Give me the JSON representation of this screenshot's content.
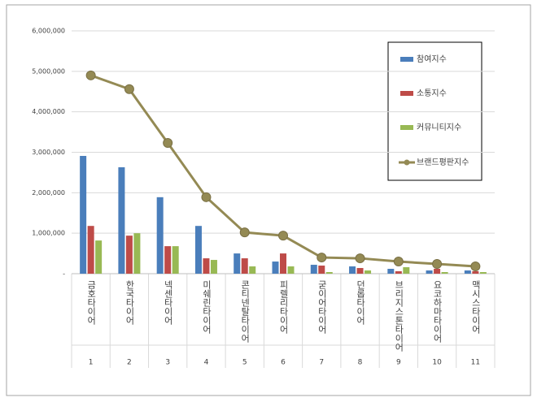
{
  "chart_data": {
    "type": "bar",
    "categories": [
      "금호타이어",
      "한국타이어",
      "넥센타이어",
      "미쉐린타이어",
      "콘티넨탈타이어",
      "피렐리타이어",
      "굳이어타이어",
      "던롭타이어",
      "브리지스톤타이어",
      "요코하마타이어",
      "맥시스타이어"
    ],
    "ranks": [
      1,
      2,
      3,
      4,
      5,
      6,
      7,
      8,
      9,
      10,
      11
    ],
    "series": [
      {
        "name": "참여지수",
        "color": "#4a7ebb",
        "values": [
          2910000,
          2630000,
          1890000,
          1180000,
          500000,
          300000,
          220000,
          180000,
          120000,
          80000,
          80000
        ]
      },
      {
        "name": "소통지수",
        "color": "#be4b48",
        "values": [
          1180000,
          940000,
          680000,
          380000,
          380000,
          500000,
          200000,
          140000,
          60000,
          120000,
          60000
        ]
      },
      {
        "name": "커뮤니티지수",
        "color": "#98b954",
        "values": [
          820000,
          1000000,
          680000,
          340000,
          180000,
          180000,
          40000,
          80000,
          160000,
          40000,
          40000
        ]
      },
      {
        "name": "브랜드평판지수",
        "color": "#948a54",
        "type": "line",
        "values": [
          4900000,
          4560000,
          3230000,
          1890000,
          1020000,
          940000,
          400000,
          380000,
          300000,
          240000,
          180000
        ]
      }
    ],
    "ylim": [
      0,
      6000000
    ],
    "yticks": [
      {
        "value": 0,
        "label": "-"
      },
      {
        "value": 1000000,
        "label": "1,000,000"
      },
      {
        "value": 2000000,
        "label": "2,000,000"
      },
      {
        "value": 3000000,
        "label": "3,000,000"
      },
      {
        "value": 4000000,
        "label": "4,000,000"
      },
      {
        "value": 5000000,
        "label": "5,000,000"
      },
      {
        "value": 6000000,
        "label": "6,000,000"
      }
    ],
    "grid": true
  }
}
